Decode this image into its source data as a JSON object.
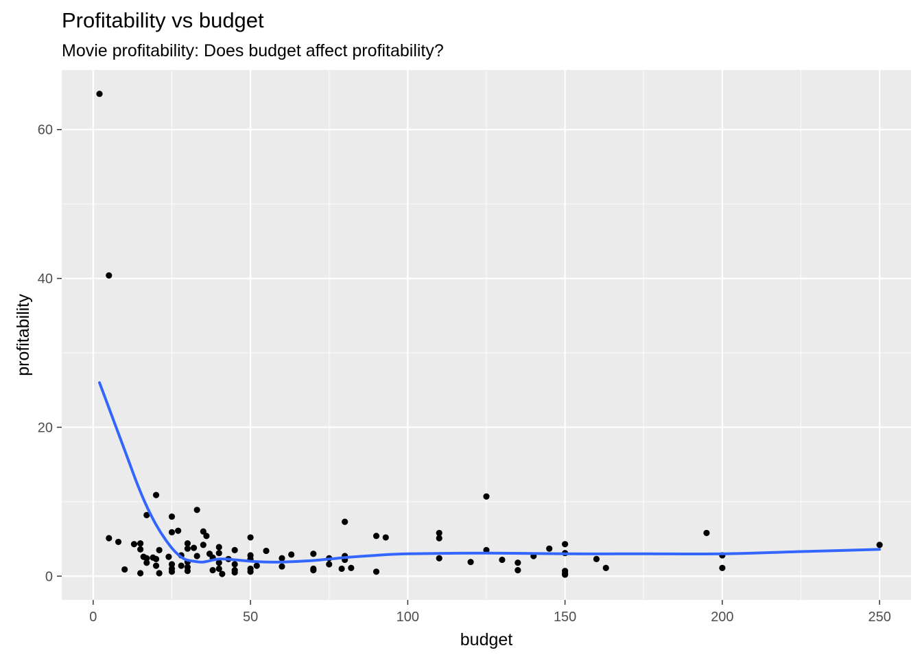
{
  "chart_data": {
    "type": "scatter",
    "title": "Profitability vs budget",
    "subtitle": "Movie profitability: Does budget affect profitability?",
    "xlabel": "budget",
    "ylabel": "profitability",
    "xlim": [
      -10,
      260
    ],
    "ylim": [
      -3.2,
      68
    ],
    "x_ticks": [
      0,
      50,
      100,
      150,
      200,
      250
    ],
    "y_ticks": [
      0,
      20,
      40,
      60
    ],
    "grid": true,
    "point_color": "#000000",
    "line_color": "#3366ff",
    "panel_color": "#ebebeb",
    "points": [
      [
        2,
        64.8
      ],
      [
        5,
        40.4
      ],
      [
        5,
        5.1
      ],
      [
        8,
        4.6
      ],
      [
        10,
        0.9
      ],
      [
        13,
        4.3
      ],
      [
        15,
        4.4
      ],
      [
        15,
        3.6
      ],
      [
        15,
        0.4
      ],
      [
        16,
        2.6
      ],
      [
        17,
        8.2
      ],
      [
        17,
        1.8
      ],
      [
        17,
        2.4
      ],
      [
        19,
        2.5
      ],
      [
        20,
        10.9
      ],
      [
        20,
        2.3
      ],
      [
        20,
        1.4
      ],
      [
        21,
        3.5
      ],
      [
        21,
        0.4
      ],
      [
        24,
        2.6
      ],
      [
        25,
        8.0
      ],
      [
        25,
        5.9
      ],
      [
        25,
        1.6
      ],
      [
        25,
        1.0
      ],
      [
        25,
        0.6
      ],
      [
        27,
        6.1
      ],
      [
        28,
        2.8
      ],
      [
        28,
        1.4
      ],
      [
        30,
        4.4
      ],
      [
        30,
        3.7
      ],
      [
        30,
        1.9
      ],
      [
        30,
        1.2
      ],
      [
        30,
        0.7
      ],
      [
        32,
        3.8
      ],
      [
        33,
        8.9
      ],
      [
        33,
        2.7
      ],
      [
        35,
        6.0
      ],
      [
        35,
        4.2
      ],
      [
        36,
        5.4
      ],
      [
        37,
        3.0
      ],
      [
        38,
        2.5
      ],
      [
        38,
        0.8
      ],
      [
        40,
        3.9
      ],
      [
        40,
        3.1
      ],
      [
        40,
        1.8
      ],
      [
        40,
        1.0
      ],
      [
        41,
        0.3
      ],
      [
        43,
        2.3
      ],
      [
        45,
        3.5
      ],
      [
        45,
        1.6
      ],
      [
        45,
        0.8
      ],
      [
        45,
        0.5
      ],
      [
        50,
        5.2
      ],
      [
        50,
        2.8
      ],
      [
        50,
        2.3
      ],
      [
        50,
        1.0
      ],
      [
        50,
        0.6
      ],
      [
        52,
        1.4
      ],
      [
        55,
        3.4
      ],
      [
        60,
        2.4
      ],
      [
        60,
        1.3
      ],
      [
        63,
        2.9
      ],
      [
        70,
        3.0
      ],
      [
        70,
        1.0
      ],
      [
        70,
        0.8
      ],
      [
        75,
        2.4
      ],
      [
        75,
        1.6
      ],
      [
        79,
        1.0
      ],
      [
        80,
        7.3
      ],
      [
        80,
        2.7
      ],
      [
        80,
        2.2
      ],
      [
        82,
        1.1
      ],
      [
        90,
        5.4
      ],
      [
        90,
        0.6
      ],
      [
        93,
        5.2
      ],
      [
        110,
        5.8
      ],
      [
        110,
        5.1
      ],
      [
        110,
        2.4
      ],
      [
        120,
        1.9
      ],
      [
        125,
        10.7
      ],
      [
        125,
        3.5
      ],
      [
        130,
        2.2
      ],
      [
        135,
        1.8
      ],
      [
        135,
        0.8
      ],
      [
        140,
        2.7
      ],
      [
        145,
        3.7
      ],
      [
        150,
        4.3
      ],
      [
        150,
        3.1
      ],
      [
        150,
        0.7
      ],
      [
        150,
        0.4
      ],
      [
        150,
        0.2
      ],
      [
        160,
        2.3
      ],
      [
        163,
        1.1
      ],
      [
        195,
        5.8
      ],
      [
        200,
        2.8
      ],
      [
        200,
        1.1
      ],
      [
        250,
        4.2
      ]
    ],
    "smooth_x": [
      2,
      5,
      8,
      11,
      14,
      17,
      20,
      23,
      26,
      29,
      32,
      35,
      40,
      45,
      50,
      55,
      60,
      70,
      80,
      90,
      100,
      125,
      150,
      175,
      200,
      225,
      250
    ],
    "smooth_y": [
      26.0,
      22.6,
      19.2,
      15.8,
      12.4,
      9.4,
      6.9,
      4.9,
      3.3,
      2.3,
      2.0,
      1.9,
      2.3,
      2.2,
      2.0,
      1.9,
      1.9,
      2.1,
      2.5,
      2.8,
      3.0,
      3.1,
      3.0,
      3.0,
      3.0,
      3.3,
      3.6
    ]
  }
}
